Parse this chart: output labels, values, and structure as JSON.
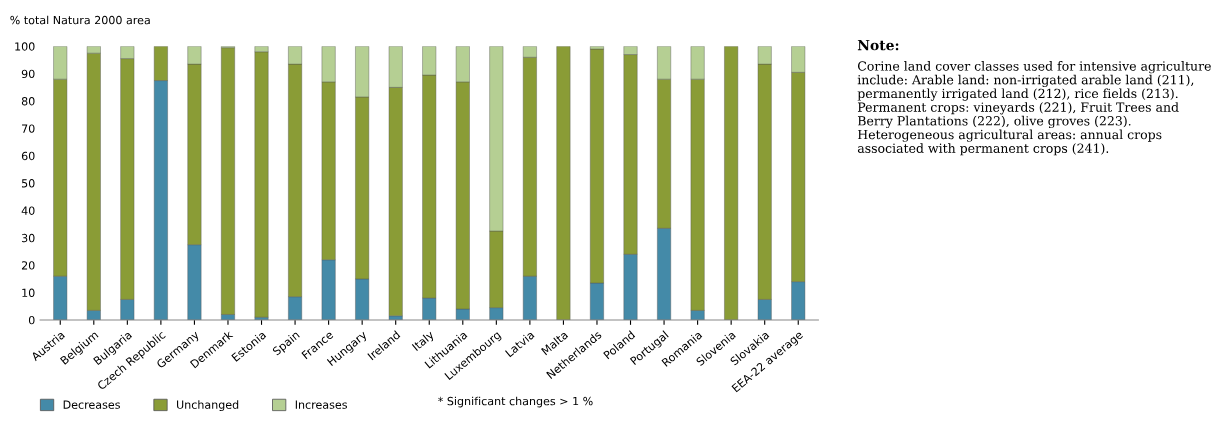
{
  "chart_data": {
    "type": "bar",
    "stacked": true,
    "ylabel": "% total Natura 2000 area",
    "categories": [
      "Austria",
      "Belgium",
      "Bulgaria",
      "Czech Republic",
      "Germany",
      "Denmark",
      "Estonia",
      "Spain",
      "France",
      "Hungary",
      "Ireland",
      "Italy",
      "Lithuania",
      "Luxembourg",
      "Latvia",
      "Malta",
      "Netherlands",
      "Poland",
      "Portugal",
      "Romania",
      "Slovenia",
      "Slovakia",
      "EEA-22 average"
    ],
    "series": [
      {
        "name": "Decreases",
        "color": "#448aa8",
        "values": [
          16,
          3.5,
          7.5,
          87.5,
          27.5,
          2,
          1,
          8.5,
          22,
          15,
          1.5,
          8,
          4,
          4.5,
          16,
          0,
          13.5,
          24,
          33.5,
          3.5,
          0,
          7.5,
          14
        ]
      },
      {
        "name": "Unchanged",
        "color": "#8a9c36",
        "values": [
          72,
          94,
          88,
          12.5,
          66,
          97.5,
          97,
          85,
          65,
          66.5,
          83.5,
          81.5,
          83,
          28,
          80,
          100,
          85.5,
          73,
          54.5,
          84.5,
          100,
          86,
          76.5
        ]
      },
      {
        "name": "Increases",
        "color": "#b5cf93",
        "values": [
          12,
          2.5,
          4.5,
          0,
          6.5,
          0.5,
          2,
          6.5,
          13,
          18.5,
          15,
          10.5,
          13,
          67.5,
          4,
          0,
          1,
          3,
          12,
          12,
          0,
          6.5,
          9.5
        ]
      }
    ],
    "ylim": [
      0,
      100
    ],
    "yticks": [
      0,
      10,
      20,
      30,
      40,
      50,
      60,
      70,
      80,
      90,
      100
    ],
    "grid": false,
    "legend": "bottom",
    "annotations": [
      "* Significant changes > 1 %",
      "Note:",
      "Corine land cover classes used for intensive agriculture include: Arable land: non-irrigated arable land (211), permanently irrigated land (212), rice fields (213). Permanent crops: vineyards (221), Fruit Trees and Berry Plantations (222), olive groves (223). Heterogeneous agricultural areas: annual crops associated with permanent crops (241)."
    ]
  }
}
